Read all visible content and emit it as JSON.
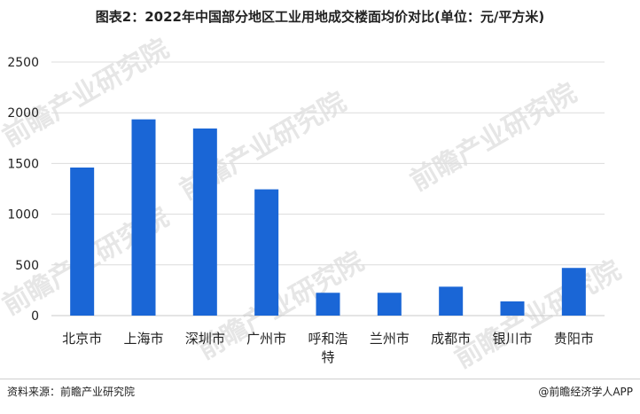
{
  "chart_data": {
    "type": "bar",
    "title": "图表2：2022年中国部分地区工业用地成交楼面均价对比(单位：元/平方米)",
    "categories": [
      "北京市",
      "上海市",
      "深圳市",
      "广州市",
      "呼和浩特",
      "兰州市",
      "成都市",
      "银川市",
      "贵阳市"
    ],
    "values": [
      1460,
      1935,
      1845,
      1245,
      225,
      225,
      285,
      140,
      470
    ],
    "ylim": [
      0,
      2500
    ],
    "yticks": [
      "0",
      "500",
      "1000",
      "1500",
      "2000",
      "2500"
    ],
    "xlabel": "",
    "ylabel": "",
    "grid": true,
    "bar_color": "#1a66d6"
  },
  "footer": {
    "source": "资料来源：前瞻产业研究院",
    "credit": "@前瞻经济学人APP"
  },
  "watermark": "前瞻产业研究院"
}
